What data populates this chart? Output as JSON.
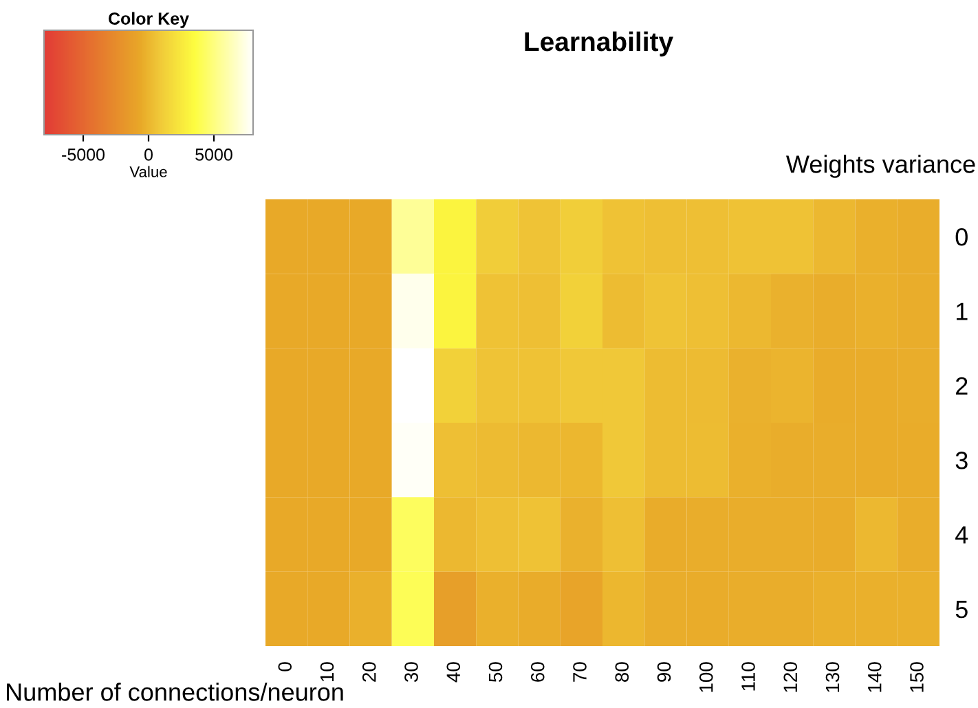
{
  "chart_data": {
    "type": "heatmap",
    "title": "Learnability",
    "xlabel": "Number of connections/neuron",
    "ylabel": "Weights variance",
    "clabel": "Value",
    "legend_title": "Color Key",
    "categories": [
      "0",
      "10",
      "20",
      "30",
      "40",
      "50",
      "60",
      "70",
      "80",
      "90",
      "100",
      "110",
      "120",
      "130",
      "140",
      "150"
    ],
    "y_categories": [
      "0",
      "1",
      "2",
      "3",
      "4",
      "5"
    ],
    "cells": [
      [
        -600,
        -600,
        -600,
        5500,
        3000,
        1000,
        600,
        1100,
        500,
        400,
        400,
        500,
        500,
        100,
        -300,
        -400
      ],
      [
        -600,
        -600,
        -600,
        7500,
        3000,
        500,
        400,
        1300,
        300,
        600,
        400,
        100,
        -200,
        -400,
        -300,
        -400
      ],
      [
        -600,
        -600,
        -600,
        8000,
        1300,
        600,
        500,
        800,
        800,
        300,
        200,
        -200,
        -100,
        -500,
        -500,
        -400
      ],
      [
        -600,
        -600,
        -600,
        7800,
        400,
        200,
        100,
        0,
        800,
        300,
        300,
        -300,
        -400,
        -400,
        -500,
        -500
      ],
      [
        -600,
        -600,
        -600,
        4200,
        100,
        400,
        500,
        -200,
        400,
        -500,
        -400,
        -400,
        -400,
        -500,
        100,
        -400
      ],
      [
        -600,
        -600,
        -300,
        4000,
        -1300,
        -300,
        -500,
        -900,
        0,
        -400,
        -500,
        -400,
        -400,
        -300,
        -300,
        -300
      ]
    ],
    "clim": [
      -8000,
      8000
    ],
    "cticks": [
      -5000,
      0,
      5000
    ],
    "grid": false
  }
}
